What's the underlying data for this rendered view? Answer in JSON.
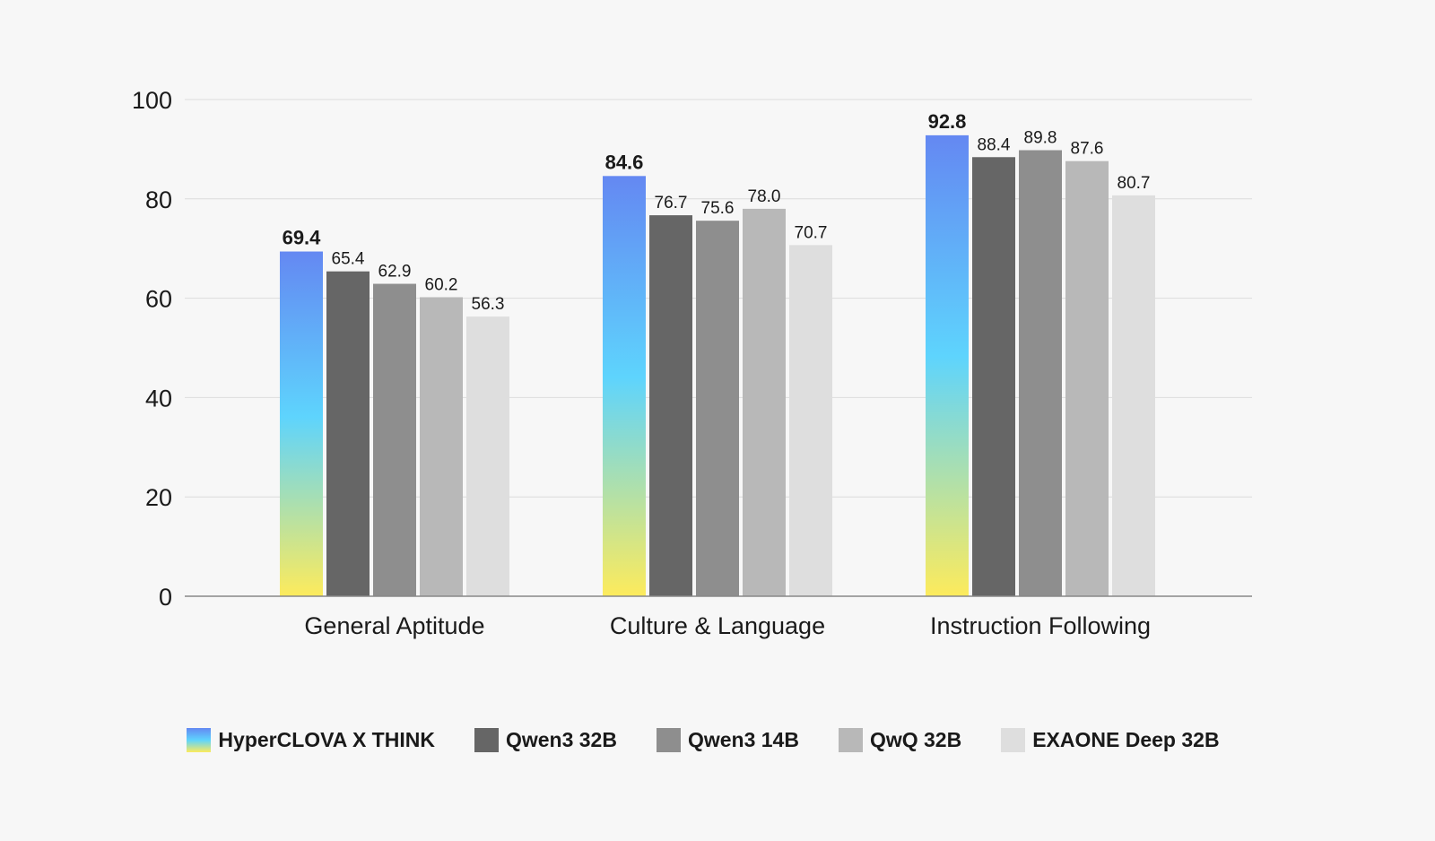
{
  "chart_data": {
    "type": "bar",
    "categories": [
      "General Aptitude",
      "Culture & Language",
      "Instruction Following"
    ],
    "series": [
      {
        "name": "HyperCLOVA X THINK",
        "values": [
          69.4,
          84.6,
          92.8
        ],
        "color": "gradient",
        "gradient_colors": [
          "#6488f2",
          "#5ed4fd",
          "#fdeb5c"
        ]
      },
      {
        "name": "Qwen3 32B",
        "values": [
          65.4,
          76.7,
          88.4
        ],
        "color": "#666666"
      },
      {
        "name": "Qwen3 14B",
        "values": [
          62.9,
          75.6,
          89.8
        ],
        "color": "#8e8e8e"
      },
      {
        "name": "QwQ 32B",
        "values": [
          60.2,
          78.0,
          87.6
        ],
        "color": "#b8b8b8"
      },
      {
        "name": "EXAONE Deep 32B",
        "values": [
          56.3,
          70.7,
          80.7
        ],
        "color": "#dedede"
      }
    ],
    "y_ticks": [
      "0",
      "20",
      "40",
      "60",
      "80",
      "100"
    ],
    "value_labels": [
      [
        "69.4",
        "65.4",
        "62.9",
        "60.2",
        "56.3"
      ],
      [
        "84.6",
        "76.7",
        "75.6",
        "78.0",
        "70.7"
      ],
      [
        "92.8",
        "88.4",
        "89.8",
        "87.6",
        "80.7"
      ]
    ],
    "ylim": [
      0,
      100
    ],
    "grid": true,
    "legend_position": "bottom",
    "title": "",
    "xlabel": "",
    "ylabel": ""
  }
}
